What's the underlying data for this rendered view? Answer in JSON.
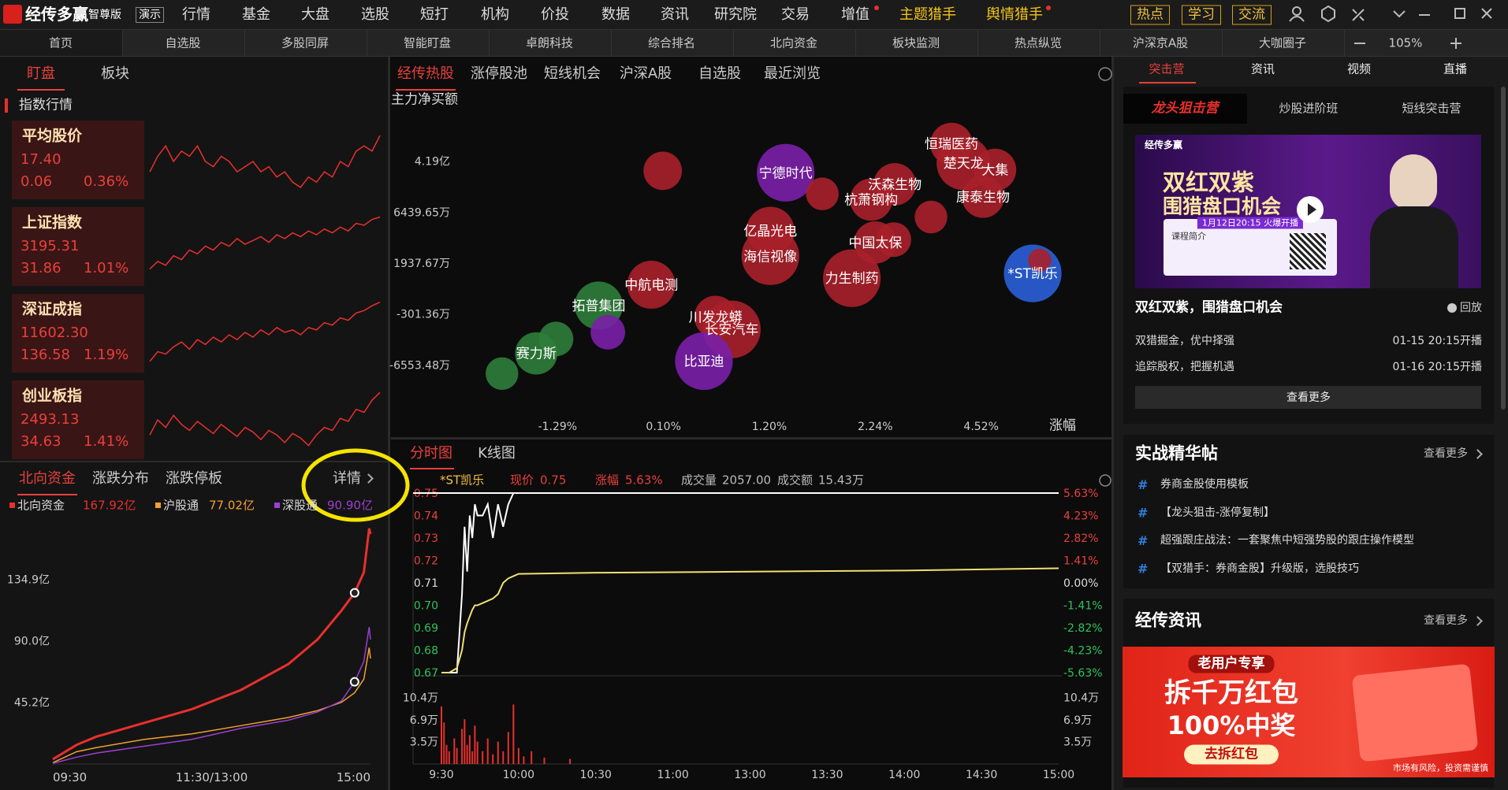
{
  "app": {
    "logo": "经传多赢",
    "edition": "智尊版",
    "mode": "演示"
  },
  "menu": [
    "行情",
    "基金",
    "大盘",
    "选股",
    "短打",
    "机构",
    "价投",
    "数据",
    "资讯",
    "研究院",
    "交易",
    "增值",
    "主题猎手",
    "舆情猎手"
  ],
  "quick_buttons": [
    "热点",
    "学习",
    "交流"
  ],
  "tabs": [
    "首页",
    "自选股",
    "多股同屏",
    "智能盯盘",
    "卓朗科技",
    "综合排名",
    "北向资金",
    "板块监测",
    "热点纵览",
    "沪深京A股",
    "大咖圈子"
  ],
  "zoom": "105%",
  "left": {
    "tabs": [
      "盯盘",
      "板块"
    ],
    "section": "指数行情",
    "indices": [
      {
        "name": "平均股价",
        "price": "17.40",
        "change": "0.06",
        "pct": "0.36%",
        "spark": {
          "ylim": [
            17.28,
            17.42
          ],
          "values": [
            17.33,
            17.36,
            17.38,
            17.35,
            17.37,
            17.36,
            17.38,
            17.35,
            17.34,
            17.36,
            17.35,
            17.33,
            17.34,
            17.35,
            17.33,
            17.34,
            17.32,
            17.33,
            17.31,
            17.3,
            17.32,
            17.31,
            17.33,
            17.32,
            17.35,
            17.34,
            17.37,
            17.38,
            17.37,
            17.4
          ]
        }
      },
      {
        "name": "上证指数",
        "price": "3195.31",
        "change": "31.86",
        "pct": "1.01%",
        "spark": {
          "ylim": [
            3160,
            3198
          ],
          "values": [
            3168,
            3172,
            3170,
            3175,
            3173,
            3178,
            3176,
            3180,
            3178,
            3182,
            3180,
            3184,
            3181,
            3183,
            3185,
            3182,
            3186,
            3184,
            3187,
            3185,
            3188,
            3186,
            3189,
            3187,
            3190,
            3188,
            3192,
            3191,
            3194,
            3195.31
          ]
        }
      },
      {
        "name": "深证成指",
        "price": "11602.30",
        "change": "136.58",
        "pct": "1.19%",
        "spark": {
          "ylim": [
            11460,
            11610
          ],
          "values": [
            11480,
            11500,
            11495,
            11510,
            11520,
            11505,
            11525,
            11515,
            11530,
            11520,
            11535,
            11525,
            11540,
            11530,
            11545,
            11535,
            11550,
            11540,
            11545,
            11535,
            11550,
            11545,
            11560,
            11555,
            11570,
            11565,
            11580,
            11585,
            11595,
            11602.3
          ]
        }
      },
      {
        "name": "创业板指",
        "price": "2493.13",
        "change": "34.63",
        "pct": "1.41%",
        "spark": {
          "ylim": [
            2450,
            2498
          ],
          "values": [
            2465,
            2475,
            2470,
            2478,
            2472,
            2468,
            2474,
            2470,
            2466,
            2472,
            2468,
            2464,
            2470,
            2467,
            2462,
            2468,
            2465,
            2460,
            2466,
            2463,
            2458,
            2465,
            2470,
            2468,
            2476,
            2474,
            2482,
            2480,
            2488,
            2493.13
          ]
        }
      }
    ],
    "north": {
      "tabs": [
        "北向资金",
        "涨跌分布",
        "涨跌停板"
      ],
      "detail": "详情",
      "chart": {
        "type": "line",
        "xlim": [
          0,
          240
        ],
        "xticks": [
          {
            "value": 0,
            "label": "09:30"
          },
          {
            "value": 120,
            "label": "11:30/13:00"
          },
          {
            "value": 240,
            "label": "15:00"
          }
        ],
        "ylim": [
          0,
          178.3
        ],
        "yticks": [
          {
            "value": 45.2,
            "label": "45.2亿"
          },
          {
            "value": 90.0,
            "label": "90.0亿"
          },
          {
            "value": 134.9,
            "label": "134.9亿"
          }
        ],
        "x": [
          0,
          18,
          33,
          69,
          105,
          142,
          178,
          200,
          218,
          228,
          235,
          239,
          240
        ],
        "series": [
          {
            "name": "北向资金",
            "latest_label": "167.92亿",
            "color": "#e8302c",
            "values": [
              3.5,
              14,
              20,
              30,
              40,
              54,
              73,
              91,
              112,
              125,
              140,
              172,
              167.92
            ]
          },
          {
            "name": "沪股通",
            "latest_label": "77.02亿",
            "color": "#f0a030",
            "values": [
              1,
              9,
              12,
              18,
              22,
              28,
              34,
              39,
              45,
              52,
              62,
              85,
              77.02
            ]
          },
          {
            "name": "深股通",
            "latest_label": "90.90亿",
            "color": "#9b3fd0",
            "values": [
              0.5,
              5,
              8,
              13,
              18,
              26,
              32,
              38,
              46,
              60,
              75,
              100,
              90.9
            ]
          }
        ]
      }
    }
  },
  "center": {
    "tabs": [
      "经传热股",
      "涨停股池",
      "短线机会",
      "沪深A股",
      "自选股",
      "最近浏览"
    ],
    "bubble": {
      "type": "bubble",
      "y_label": "主力净买额",
      "x_label": "涨幅",
      "xlim": [
        -2.68,
        6.8
      ],
      "xticks": [
        {
          "value": -1.29,
          "label": "-1.29%"
        },
        {
          "value": 0.1,
          "label": "0.10%"
        },
        {
          "value": 1.2,
          "label": "1.20%"
        },
        {
          "value": 2.24,
          "label": "2.24%"
        },
        {
          "value": 4.52,
          "label": "4.52%"
        }
      ],
      "ylim": [
        -12805,
        77360
      ],
      "yticks": [
        {
          "value": -6553.48,
          "label": "-6553.48万"
        },
        {
          "value": -301.36,
          "label": "-301.36万"
        },
        {
          "value": 1937.67,
          "label": "1937.67万"
        },
        {
          "value": 6439.65,
          "label": "6439.65万"
        },
        {
          "value": 41900,
          "label": "4.19亿"
        }
      ],
      "points": [
        {
          "name": null,
          "x": 0.09,
          "y": 35210,
          "size": 20,
          "color": "#a8202a"
        },
        {
          "name": "宁德时代",
          "x": 1.36,
          "y": 33870,
          "size": 30,
          "color": "#7a1fa8"
        },
        {
          "name": null,
          "x": 1.72,
          "y": 19150,
          "size": 17,
          "color": "#a8202a"
        },
        {
          "name": "沃森生物",
          "x": 2.66,
          "y": 25840,
          "size": 22,
          "color": "#a8202a"
        },
        {
          "name": "杭萧钢构",
          "x": 2.2,
          "y": 15140,
          "size": 22,
          "color": "#a8202a"
        },
        {
          "name": "恒瑞医药",
          "x": 3.88,
          "y": 53940,
          "size": 22,
          "color": "#a8202a"
        },
        {
          "name": "楚天龙",
          "x": 4.14,
          "y": 40560,
          "size": 28,
          "color": "#a8202a"
        },
        {
          "name": "大集",
          "x": 4.82,
          "y": 35880,
          "size": 22,
          "color": "#a8202a"
        },
        {
          "name": "康泰生物",
          "x": 4.56,
          "y": 17150,
          "size": 22,
          "color": "#a8202a"
        },
        {
          "name": null,
          "x": 3.44,
          "y": 6007,
          "size": 17,
          "color": "#a8202a"
        },
        {
          "name": "亿晶光电",
          "x": 1.21,
          "y": 4795,
          "size": 25,
          "color": "#a8202a"
        },
        {
          "name": "海信视像",
          "x": 1.21,
          "y": 2544,
          "size": 30,
          "color": "#a8202a"
        },
        {
          "name": "中国太保",
          "x": 2.24,
          "y": 3756,
          "size": 22,
          "color": "#a8202a"
        },
        {
          "name": null,
          "x": 2.64,
          "y": 4015,
          "size": 18,
          "color": "#a8202a"
        },
        {
          "name": "力生制药",
          "x": 2.01,
          "y": 1274,
          "size": 30,
          "color": "#a8202a"
        },
        {
          "name": "*ST凯乐",
          "x": 5.63,
          "y": 1482,
          "size": 30,
          "color": "#2a5fd8"
        },
        {
          "name": null,
          "x": 5.78,
          "y": 2197,
          "size": 12,
          "color": "#a8202a"
        },
        {
          "name": "中航电测",
          "x": -0.06,
          "y": 984,
          "size": 25,
          "color": "#a8202a"
        },
        {
          "name": "拓普集团",
          "x": -0.75,
          "y": 72,
          "size": 25,
          "color": "#2e7d3a"
        },
        {
          "name": null,
          "x": -0.63,
          "y": -2543,
          "size": 18,
          "color": "#7a1fa8"
        },
        {
          "name": null,
          "x": -1.31,
          "y": -3368,
          "size": 18,
          "color": "#2e7d3a"
        },
        {
          "name": "赛力斯",
          "x": -1.57,
          "y": -5138,
          "size": 22,
          "color": "#2e7d3a"
        },
        {
          "name": null,
          "x": -2.02,
          "y": -7615,
          "size": 17,
          "color": "#2e7d3a"
        },
        {
          "name": "川发龙蟒",
          "x": 0.64,
          "y": -655,
          "size": 22,
          "color": "#a8202a"
        },
        {
          "name": "长安汽车",
          "x": 0.81,
          "y": -2189,
          "size": 30,
          "color": "#a8202a"
        },
        {
          "name": "比亚迪",
          "x": 0.52,
          "y": -6081,
          "size": 30,
          "color": "#7a1fa8"
        }
      ]
    },
    "chart_tabs": [
      "分时图",
      "K线图"
    ],
    "intraday": {
      "type": "line",
      "stock": "*ST凯乐",
      "fields": [
        {
          "label": "现价",
          "value": "0.75"
        },
        {
          "label": "涨幅",
          "value": "5.63%"
        },
        {
          "label": "成交量",
          "value": "2057.00"
        },
        {
          "label": "成交额",
          "value": "15.43万"
        }
      ],
      "xlim": [
        0,
        240
      ],
      "xticks": [
        {
          "value": 0,
          "label": "9:30"
        },
        {
          "value": 30,
          "label": "10:00"
        },
        {
          "value": 60,
          "label": "10:30"
        },
        {
          "value": 90,
          "label": "11:00"
        },
        {
          "value": 120,
          "label": "13:00"
        },
        {
          "value": 150,
          "label": "13:30"
        },
        {
          "value": 180,
          "label": "14:00"
        },
        {
          "value": 210,
          "label": "14:30"
        },
        {
          "value": 240,
          "label": "15:00"
        }
      ],
      "ylim": [
        0.67,
        0.75
      ],
      "yticks": [
        0.75,
        0.74,
        0.73,
        0.72,
        0.71,
        {
          "value": 0.7,
          "label": "0.70"
        },
        0.69,
        0.68,
        0.67
      ],
      "y2lim": [
        -5.63,
        5.63
      ],
      "y2ticks": [
        {
          "value": 5.63,
          "label": "5.63%"
        },
        {
          "value": 4.23,
          "label": "4.23%"
        },
        {
          "value": 2.82,
          "label": "2.82%"
        },
        {
          "value": 1.41,
          "label": "1.41%"
        },
        {
          "value": 0,
          "label": "0.00%"
        },
        {
          "value": -1.41,
          "label": "-1.41%"
        },
        {
          "value": -2.82,
          "label": "-2.82%"
        },
        {
          "value": -4.23,
          "label": "-4.23%"
        },
        {
          "value": -5.63,
          "label": "-5.63%"
        }
      ],
      "x": [
        0,
        3,
        6,
        8,
        9,
        10,
        11,
        12,
        13,
        14,
        16,
        18,
        20,
        22,
        24,
        26,
        28,
        30,
        60,
        120,
        180,
        240
      ],
      "series": [
        {
          "name": "价格",
          "color": "#ffffff",
          "values": [
            0.67,
            0.67,
            0.67,
            0.705,
            0.735,
            0.715,
            0.74,
            0.73,
            0.745,
            0.74,
            0.74,
            0.745,
            0.73,
            0.745,
            0.735,
            0.745,
            0.75,
            0.75,
            0.75,
            0.75,
            0.75,
            0.75
          ]
        },
        {
          "name": "均价",
          "color": "#f0e070",
          "values": [
            0.67,
            0.67,
            0.672,
            0.68,
            0.688,
            0.692,
            0.695,
            0.698,
            0.7,
            0.7,
            0.701,
            0.702,
            0.703,
            0.705,
            0.71,
            0.712,
            0.713,
            0.714,
            0.7145,
            0.715,
            0.7155,
            0.7165
          ]
        }
      ],
      "volume": {
        "color": "#e8302c",
        "ylim": [
          0,
          13.3
        ],
        "yticks": [
          {
            "value": 3.5,
            "label": "3.5万"
          },
          {
            "value": 6.9,
            "label": "6.9万"
          },
          {
            "value": 10.4,
            "label": "10.4万"
          }
        ],
        "x": [
          0,
          1,
          2,
          3,
          5,
          6,
          8,
          9,
          10,
          11,
          12,
          13,
          14,
          16,
          18,
          20,
          22,
          24,
          26,
          28,
          30,
          32,
          35,
          40,
          50
        ],
        "values": [
          9,
          6.5,
          3,
          2,
          4,
          2.5,
          5.5,
          7,
          3,
          4.5,
          2,
          6,
          3.5,
          2,
          4,
          1.5,
          3.5,
          2,
          5,
          9.3,
          2.5,
          1.2,
          2,
          1,
          0.8
        ]
      }
    }
  },
  "right": {
    "tabs": [
      "突击营",
      "资讯",
      "视频",
      "直播"
    ],
    "course_tabs": [
      "龙头狙击营",
      "炒股进阶班",
      "短线突击营"
    ],
    "banner": {
      "brand": "经传多赢",
      "title": "双红双紫",
      "subtitle": "围猎盘口机会",
      "date": "1月12日20:15 火爆开播",
      "intro": "课程简介"
    },
    "course": {
      "title": "双红双紫，围猎盘口机会",
      "replay": "回放",
      "sessions": [
        {
          "name": "双猎掘金，优中择强",
          "time": "01-15 20:15开播"
        },
        {
          "name": "追踪股权，把握机遇",
          "time": "01-16 20:15开播"
        }
      ],
      "more": "查看更多"
    },
    "posts": {
      "title": "实战精华帖",
      "more": "查看更多",
      "items": [
        "券商金股使用模板",
        "【龙头狙击-涨停复制】",
        "超强跟庄战法：一套聚焦中短强势股的跟庄操作模型",
        "【双猎手：券商金股】升级版，选股技巧"
      ]
    },
    "news": {
      "title": "经传资讯",
      "more": "查看更多",
      "ad": {
        "tag": "老用户专享",
        "headline": "拆千万红包",
        "sub": "100%中奖",
        "button": "去拆红包",
        "disclaimer": "市场有风险，投资需谨慎"
      }
    }
  }
}
